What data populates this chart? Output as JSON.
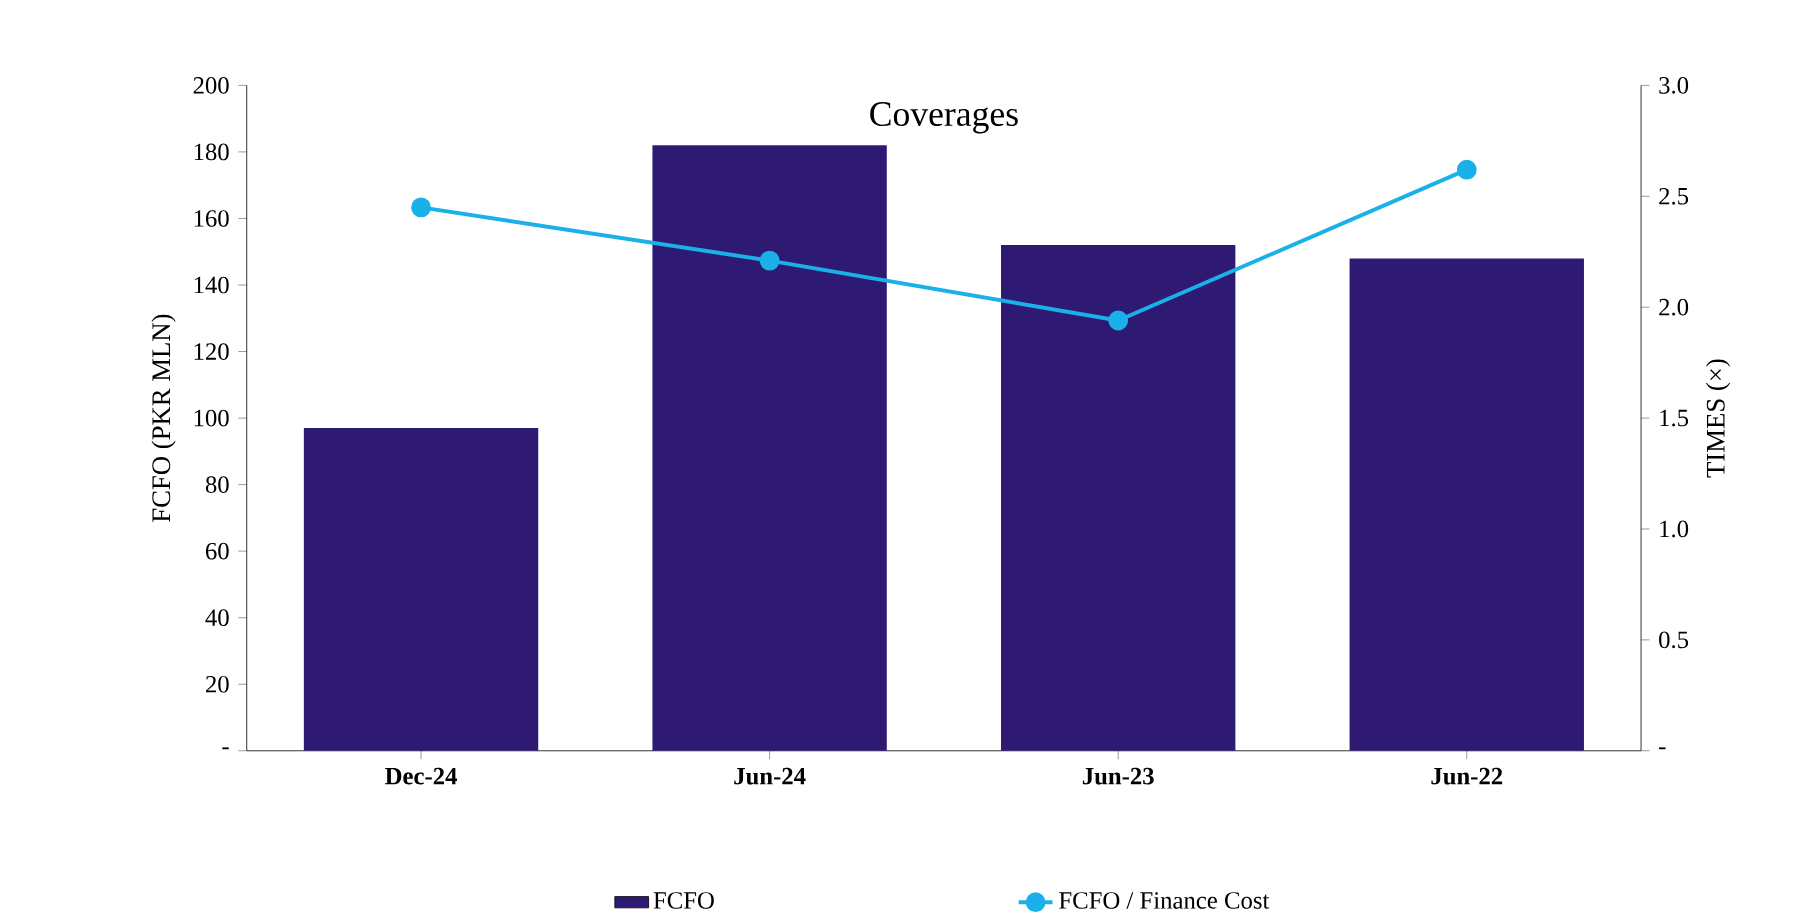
{
  "chart_data": {
    "type": "bar",
    "title": "Coverages",
    "ylabel": "FCFO (PKR MLN)",
    "y2label": "TIMES (×)",
    "categories": [
      "Dec-24",
      "Jun-24",
      "Jun-23",
      "Jun-22"
    ],
    "series": [
      {
        "name": "FCFO",
        "color": "#2e1a72",
        "values": [
          97,
          182,
          152,
          148
        ]
      },
      {
        "name": "FCFO / Finance Cost",
        "type": "line",
        "axis": "y2",
        "color": "#1ab0e8",
        "marker": "circle",
        "values": [
          2.45,
          2.21,
          1.94,
          2.62
        ]
      }
    ],
    "ylim": [
      0,
      200
    ],
    "yticks": [
      {
        "value": 0,
        "label": "-"
      },
      20,
      40,
      60,
      80,
      100,
      120,
      140,
      160,
      180,
      200
    ],
    "y2lim": [
      0,
      3
    ],
    "y2ticks": [
      {
        "value": 0,
        "label": "-"
      },
      0.5,
      {
        "value": 1,
        "label": "1.0"
      },
      1.5,
      {
        "value": 2,
        "label": "2.0"
      },
      2.5,
      {
        "value": 3,
        "label": "3.0"
      }
    ],
    "grid": false,
    "legend": "bottom"
  }
}
